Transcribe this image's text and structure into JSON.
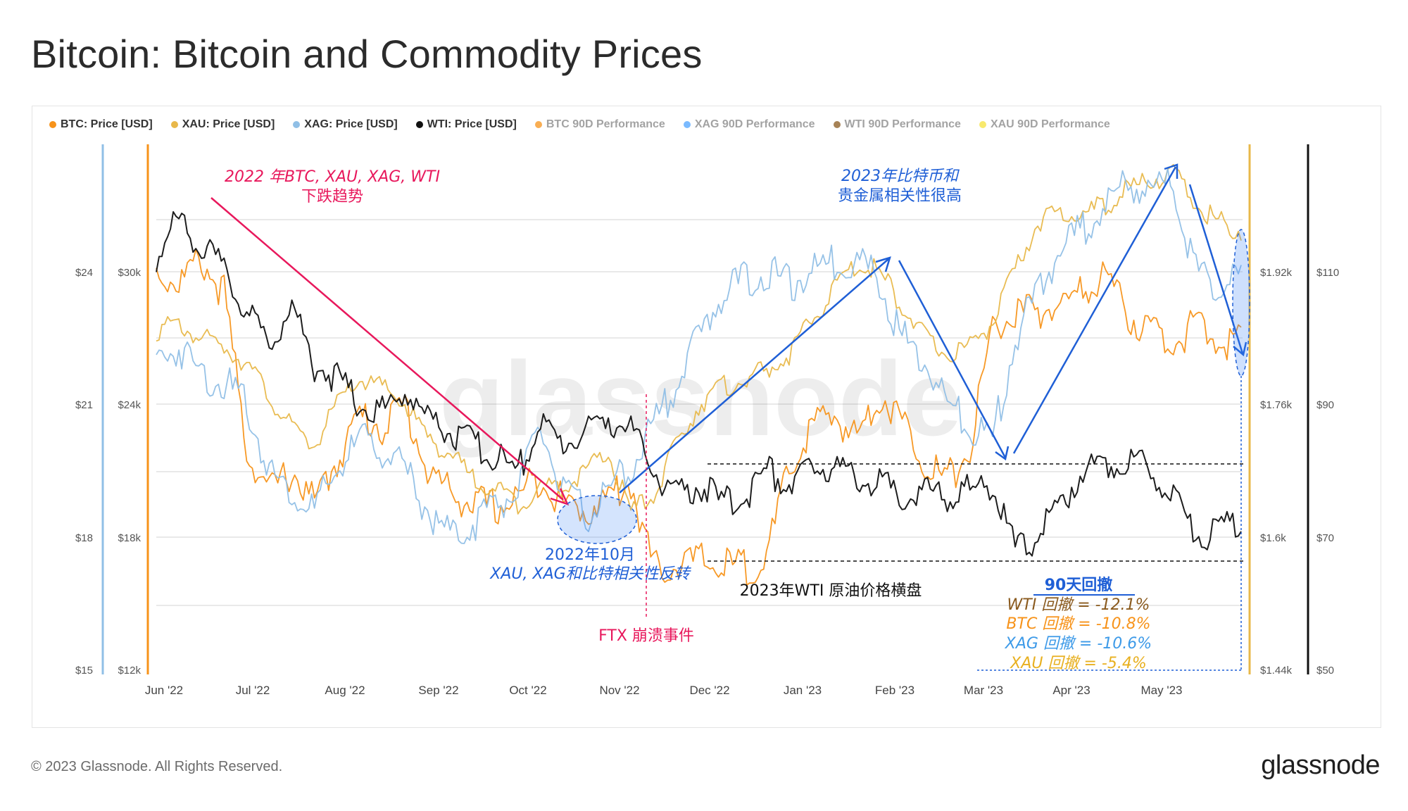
{
  "title": "Bitcoin: Bitcoin and Commodity Prices",
  "legend": [
    {
      "label": "BTC: Price [USD]",
      "color": "#f7931a",
      "dim": false
    },
    {
      "label": "XAU: Price [USD]",
      "color": "#e8b84a",
      "dim": false
    },
    {
      "label": "XAG: Price [USD]",
      "color": "#90bfe6",
      "dim": false
    },
    {
      "label": "WTI: Price [USD]",
      "color": "#111111",
      "dim": false
    },
    {
      "label": "BTC 90D Performance",
      "color": "#f7931a",
      "dim": true
    },
    {
      "label": "XAG 90D Performance",
      "color": "#4da3ff",
      "dim": true
    },
    {
      "label": "WTI 90D Performance",
      "color": "#8a5a1e",
      "dim": true
    },
    {
      "label": "XAU 90D Performance",
      "color": "#f5e13c",
      "dim": true
    }
  ],
  "watermark": "glassnode",
  "footer": {
    "copyright": "© 2023 Glassnode. All Rights Reserved.",
    "brand": "glassnode"
  },
  "colors": {
    "btc": "#f7931a",
    "xau": "#e8b84a",
    "xag": "#90bfe6",
    "wti": "#111111",
    "red": "#e8185c",
    "blue": "#1f5fd6",
    "brown": "#8a5a1e",
    "xagPerf": "#3d9ae8",
    "gold": "#e8b020"
  },
  "chart_data": {
    "type": "line",
    "title": "Bitcoin: Bitcoin and Commodity Prices",
    "x_ticks": [
      "Jun '22",
      "Jul '22",
      "Aug '22",
      "Sep '22",
      "Oct '22",
      "Nov '22",
      "Dec '22",
      "Jan '23",
      "Feb '23",
      "Mar '23",
      "Apr '23",
      "May '23"
    ],
    "axes": {
      "xag": {
        "ticks": [
          "$24",
          "$21",
          "$18",
          "$15"
        ],
        "range": [
          15,
          26.5
        ]
      },
      "btc": {
        "ticks": [
          "$30k",
          "$24k",
          "$18k",
          "$12k"
        ],
        "range": [
          12000,
          35000
        ]
      },
      "xau": {
        "ticks": [
          "$1.92k",
          "$1.76k",
          "$1.6k",
          "$1.44k"
        ],
        "range": [
          1440,
          2060
        ]
      },
      "wti": {
        "ticks": [
          "$110",
          "$90",
          "$70",
          "$50"
        ],
        "range": [
          50,
          126
        ]
      }
    },
    "series": [
      {
        "name": "BTC: Price [USD]",
        "axis": "btc",
        "color": "#f7931a",
        "values": [
          30000,
          29500,
          30500,
          29000,
          22000,
          20000,
          21000,
          19500,
          21500,
          23500,
          23000,
          24000,
          21000,
          20000,
          19500,
          19300,
          19800,
          20800,
          19500,
          19200,
          19800,
          20500,
          16500,
          16800,
          16900,
          16700,
          16600,
          17000,
          21000,
          23000,
          23500,
          22500,
          24500,
          23200,
          21500,
          20500,
          22000,
          27500,
          28000,
          28200,
          28500,
          29000,
          30000,
          28000,
          27300,
          26900,
          27500,
          26800,
          26900
        ]
      },
      {
        "name": "XAU: Price [USD]",
        "axis": "xau",
        "color": "#e8b84a",
        "values": [
          1850,
          1855,
          1840,
          1830,
          1810,
          1770,
          1730,
          1710,
          1760,
          1790,
          1780,
          1760,
          1720,
          1700,
          1670,
          1660,
          1640,
          1660,
          1660,
          1680,
          1700,
          1630,
          1650,
          1710,
          1760,
          1780,
          1790,
          1800,
          1820,
          1860,
          1900,
          1930,
          1920,
          1880,
          1840,
          1820,
          1830,
          1860,
          1920,
          1980,
          1990,
          1990,
          2000,
          2020,
          2030,
          2040,
          2000,
          1980,
          1970
        ]
      },
      {
        "name": "XAG: Price [USD]",
        "axis": "xag",
        "color": "#90bfe6",
        "values": [
          22.0,
          22.3,
          21.7,
          21.5,
          21.0,
          19.5,
          19.0,
          18.6,
          19.5,
          20.2,
          20.0,
          19.5,
          18.6,
          18.0,
          18.3,
          18.8,
          19.0,
          20.5,
          19.0,
          18.5,
          19.0,
          19.6,
          20.5,
          21.5,
          22.5,
          23.5,
          23.8,
          24.0,
          23.7,
          24.0,
          24.2,
          24.3,
          23.8,
          22.5,
          22.0,
          21.0,
          20.5,
          20.2,
          22.5,
          23.5,
          24.5,
          25.0,
          25.5,
          26.0,
          25.8,
          26.0,
          24.0,
          23.6,
          23.9
        ]
      },
      {
        "name": "WTI: Price [USD]",
        "axis": "wti",
        "color": "#111111",
        "values": [
          112,
          118,
          114,
          110,
          104,
          99,
          105,
          96,
          94,
          90,
          89,
          92,
          88,
          86,
          84,
          82,
          80,
          87,
          84,
          86,
          88,
          86,
          80,
          76,
          78,
          75,
          76,
          80,
          78,
          80,
          81,
          79,
          78,
          76,
          77,
          76,
          77,
          78,
          68,
          70,
          75,
          80,
          81,
          82,
          80,
          77,
          70,
          71,
          72
        ]
      }
    ],
    "annotations": {
      "trend_2022": [
        "2022 年BTC, XAU, XAG, WTI",
        "下跌趋势"
      ],
      "corr_2023": [
        "2023年比特币和",
        "贵金属相关性很高"
      ],
      "oct_2022": [
        "2022年10月",
        "XAU, XAG和比特相关性反转"
      ],
      "ftx": "FTX 崩溃事件",
      "wti_flat": "2023年WTI 原油价格横盘",
      "drawdown_title": "90天回撤",
      "drawdowns": [
        {
          "text": "WTI 回撤 = -12.1%",
          "key": "brown"
        },
        {
          "text": "BTC 回撤 = -10.8%",
          "key": "btc"
        },
        {
          "text": "XAG 回撤 = -10.6%",
          "key": "xagPerf"
        },
        {
          "text": "XAU 回撤 = -5.4%",
          "key": "gold"
        }
      ]
    }
  }
}
